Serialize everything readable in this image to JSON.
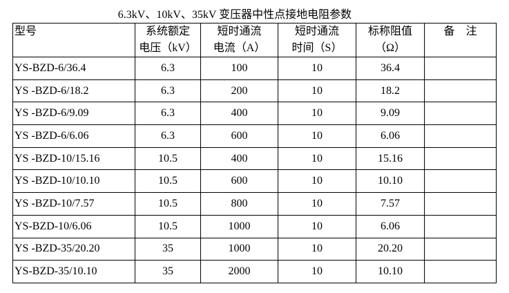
{
  "title": "6.3kV、10kV、35kV 变压器中性点接地电阻参数",
  "table": {
    "header": [
      [
        "型号"
      ],
      [
        "系统额定",
        "电压（kV）"
      ],
      [
        "短时通流",
        "电流（A）"
      ],
      [
        "短时通流",
        "时间（S）"
      ],
      [
        "标称阻值",
        "（Ω）"
      ],
      [
        "备　注"
      ]
    ],
    "rows": [
      [
        "YS-BZD-6/36.4",
        "6.3",
        "100",
        "10",
        "36.4",
        ""
      ],
      [
        "YS -BZD-6/18.2",
        "6.3",
        "200",
        "10",
        "18.2",
        ""
      ],
      [
        "YS -BZD-6/9.09",
        "6.3",
        "400",
        "10",
        "9.09",
        ""
      ],
      [
        "YS -BZD-6/6.06",
        "6.3",
        "600",
        "10",
        "6.06",
        ""
      ],
      [
        "YS -BZD-10/15.16",
        "10.5",
        "400",
        "10",
        "15.16",
        ""
      ],
      [
        "YS -BZD-10/10.10",
        "10.5",
        "600",
        "10",
        "10.10",
        ""
      ],
      [
        "YS -BZD-10/7.57",
        "10.5",
        "800",
        "10",
        "7.57",
        ""
      ],
      [
        "YS-BZD-10/6.06",
        "10.5",
        "1000",
        "10",
        "6.06",
        ""
      ],
      [
        "YS -BZD-35/20.20",
        "35",
        "1000",
        "10",
        "20.20",
        ""
      ],
      [
        "YS-BZD-35/10.10",
        "35",
        "2000",
        "10",
        "10.10",
        ""
      ]
    ]
  }
}
